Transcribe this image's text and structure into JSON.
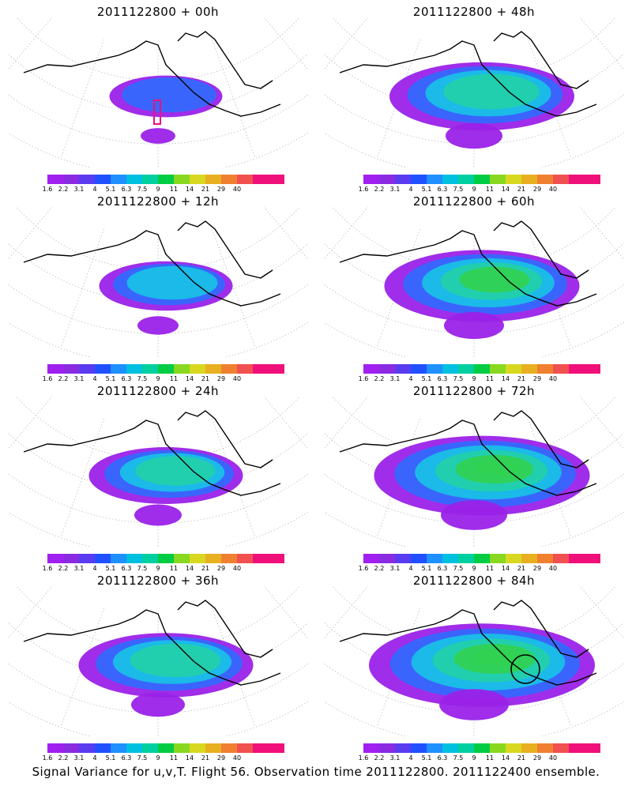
{
  "panels": [
    {
      "id": "p00",
      "title": "2011122800 + 00h"
    },
    {
      "id": "p48",
      "title": "2011122800 + 48h"
    },
    {
      "id": "p12",
      "title": "2011122800 + 12h"
    },
    {
      "id": "p60",
      "title": "2011122800 + 60h"
    },
    {
      "id": "p24",
      "title": "2011122800 + 24h"
    },
    {
      "id": "p72",
      "title": "2011122800 + 72h"
    },
    {
      "id": "p36",
      "title": "2011122800 + 36h"
    },
    {
      "id": "p84",
      "title": "2011122800 + 84h"
    }
  ],
  "colorbar": {
    "labels": [
      "1.6",
      "2.2",
      "3.1",
      "4",
      "5.1",
      "6.3",
      "7.5",
      "9",
      "11",
      "14",
      "21",
      "29",
      "40"
    ],
    "colors": [
      "#a020f0",
      "#8a2be2",
      "#5a3cf0",
      "#2050ff",
      "#1e90ff",
      "#00c0e0",
      "#00d0a0",
      "#00cc44",
      "#88d820",
      "#d8d820",
      "#e8b020",
      "#f08030",
      "#f05050",
      "#f0107a",
      "#f0107a"
    ]
  },
  "map_colors": {
    "low": "#9a22e8",
    "mid_blue": "#2f6cff",
    "cyan": "#18c3e6",
    "teal": "#22d2a8",
    "green": "#32d050",
    "coast": "#000000",
    "highlight": "#f0107a"
  },
  "footer": "Signal Variance for u,v,T. Flight 56. Observation time 2011122800. 2011122400 ensemble."
}
